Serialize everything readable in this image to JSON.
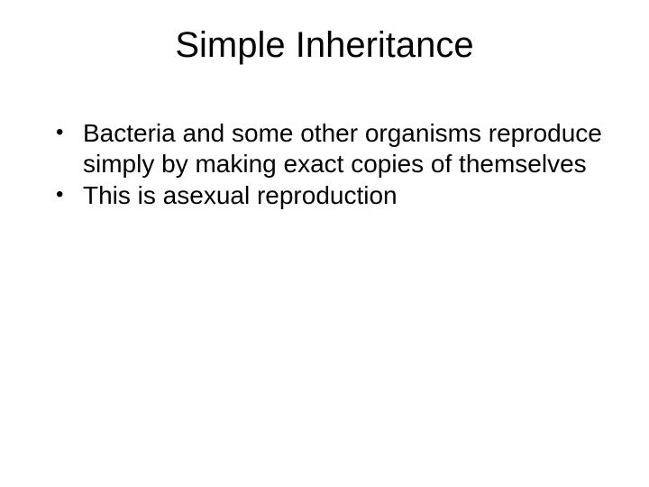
{
  "slide": {
    "title": "Simple Inheritance",
    "bullets": [
      "Bacteria and some other organisms reproduce simply by making exact copies of themselves",
      "This is asexual reproduction"
    ],
    "background_color": "#ffffff",
    "text_color": "#000000",
    "title_fontsize": 40,
    "body_fontsize": 28,
    "font_family": "Arial"
  }
}
